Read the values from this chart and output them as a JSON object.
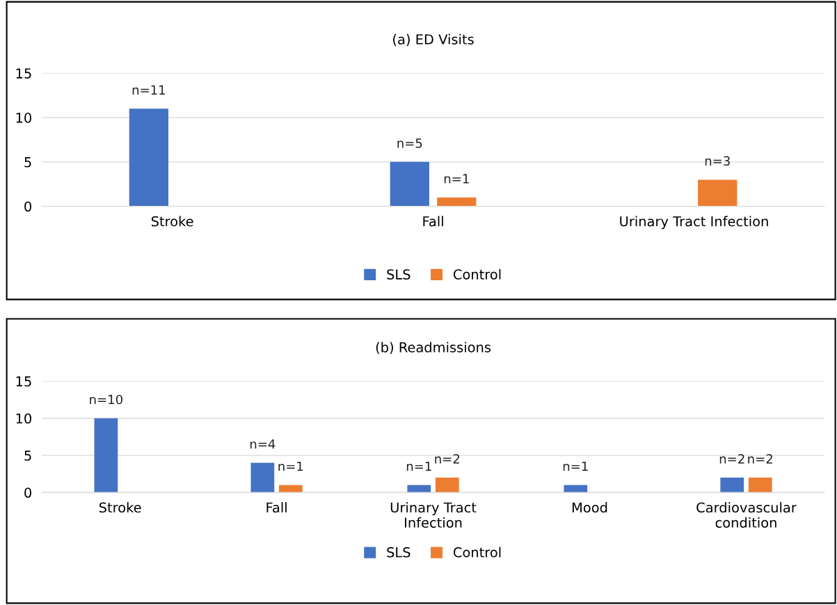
{
  "chart_data": [
    {
      "type": "bar",
      "title": "(a) ED Visits",
      "categories": [
        "Stroke",
        "Fall",
        "Urinary Tract Infection"
      ],
      "series": [
        {
          "name": "SLS",
          "color": "#4472c4",
          "values": [
            11,
            5,
            0
          ],
          "value_labels": [
            "n=11",
            "n=5",
            null
          ]
        },
        {
          "name": "Control",
          "color": "#ed7d31",
          "values": [
            0,
            1,
            3
          ],
          "value_labels": [
            null,
            "n=1",
            "n=3"
          ]
        }
      ],
      "ylim": [
        0,
        15
      ],
      "yticks": [
        0,
        5,
        10,
        15
      ],
      "grid": "y",
      "legend": "bottom"
    },
    {
      "type": "bar",
      "title": "(b) Readmissions",
      "categories": [
        "Stroke",
        "Fall",
        "Urinary Tract\nInfection",
        "Mood",
        "Cardiovascular\ncondition"
      ],
      "series": [
        {
          "name": "SLS",
          "color": "#4472c4",
          "values": [
            10,
            4,
            1,
            1,
            2
          ],
          "value_labels": [
            "n=10",
            "n=4",
            "n=1",
            "n=1",
            "n=2"
          ]
        },
        {
          "name": "Control",
          "color": "#ed7d31",
          "values": [
            0,
            1,
            2,
            0,
            2
          ],
          "value_labels": [
            null,
            "n=1",
            "n=2",
            null,
            "n=2"
          ]
        }
      ],
      "ylim": [
        0,
        15
      ],
      "yticks": [
        0,
        5,
        10,
        15
      ],
      "grid": "y",
      "legend": "bottom"
    }
  ]
}
